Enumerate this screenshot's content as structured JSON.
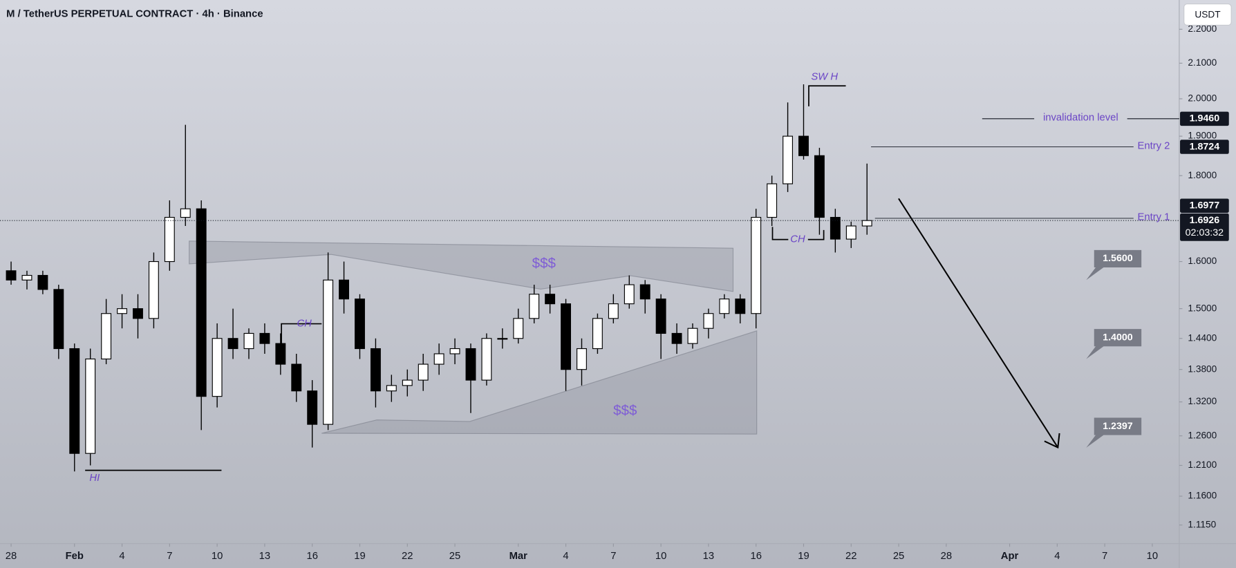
{
  "chart_data": {
    "type": "candlestick",
    "title": "M / TetherUS PERPETUAL CONTRACT · 4h · Binance",
    "currency": "USDT",
    "log_scale": true,
    "grid": false,
    "up_color": "#ffffff",
    "down_color": "#000000",
    "wick_color": "#000000",
    "annotation_color": "#6b45c6",
    "tag_color": "#131722",
    "target_color": "#787b86",
    "x": [
      0,
      1,
      2,
      3,
      4,
      5,
      6,
      7,
      8,
      9,
      10,
      11,
      12,
      13,
      14,
      15,
      16,
      17,
      18,
      19,
      20,
      21,
      22,
      23,
      24,
      25,
      26,
      27,
      28,
      29,
      30,
      31,
      32,
      33,
      34,
      35,
      36,
      37,
      38,
      39,
      40,
      41,
      42,
      43,
      44,
      45,
      46,
      47,
      48,
      49,
      50,
      51,
      52,
      53,
      54
    ],
    "open": [
      1.58,
      1.56,
      1.57,
      1.54,
      1.42,
      1.23,
      1.4,
      1.49,
      1.5,
      1.48,
      1.6,
      1.7,
      1.72,
      1.33,
      1.44,
      1.42,
      1.45,
      1.43,
      1.39,
      1.34,
      1.28,
      1.56,
      1.52,
      1.42,
      1.34,
      1.35,
      1.36,
      1.39,
      1.41,
      1.42,
      1.36,
      1.44,
      1.44,
      1.48,
      1.53,
      1.51,
      1.38,
      1.42,
      1.48,
      1.51,
      1.55,
      1.52,
      1.45,
      1.43,
      1.46,
      1.49,
      1.52,
      1.49,
      1.7,
      1.78,
      1.9,
      1.85,
      1.7,
      1.65,
      1.68
    ],
    "high": [
      1.6,
      1.58,
      1.58,
      1.55,
      1.43,
      1.42,
      1.52,
      1.53,
      1.53,
      1.62,
      1.74,
      1.93,
      1.74,
      1.47,
      1.5,
      1.46,
      1.47,
      1.45,
      1.41,
      1.36,
      1.62,
      1.6,
      1.53,
      1.44,
      1.37,
      1.38,
      1.41,
      1.43,
      1.44,
      1.43,
      1.45,
      1.46,
      1.5,
      1.55,
      1.55,
      1.52,
      1.44,
      1.49,
      1.53,
      1.57,
      1.56,
      1.53,
      1.47,
      1.47,
      1.5,
      1.53,
      1.53,
      1.72,
      1.8,
      1.99,
      2.04,
      1.87,
      1.72,
      1.69,
      1.83
    ],
    "low": [
      1.55,
      1.54,
      1.53,
      1.4,
      1.2,
      1.21,
      1.39,
      1.46,
      1.44,
      1.46,
      1.58,
      1.68,
      1.27,
      1.31,
      1.4,
      1.4,
      1.41,
      1.37,
      1.32,
      1.24,
      1.27,
      1.49,
      1.4,
      1.31,
      1.32,
      1.33,
      1.34,
      1.37,
      1.39,
      1.3,
      1.35,
      1.42,
      1.43,
      1.47,
      1.49,
      1.34,
      1.35,
      1.41,
      1.47,
      1.5,
      1.49,
      1.4,
      1.41,
      1.42,
      1.44,
      1.48,
      1.47,
      1.46,
      1.68,
      1.76,
      1.84,
      1.66,
      1.62,
      1.63,
      1.66
    ],
    "close": [
      1.56,
      1.57,
      1.54,
      1.42,
      1.23,
      1.4,
      1.49,
      1.5,
      1.48,
      1.6,
      1.7,
      1.72,
      1.33,
      1.44,
      1.42,
      1.45,
      1.43,
      1.39,
      1.34,
      1.28,
      1.56,
      1.52,
      1.42,
      1.34,
      1.35,
      1.36,
      1.39,
      1.41,
      1.42,
      1.36,
      1.44,
      1.44,
      1.48,
      1.53,
      1.51,
      1.38,
      1.42,
      1.48,
      1.51,
      1.55,
      1.52,
      1.45,
      1.43,
      1.46,
      1.49,
      1.52,
      1.49,
      1.7,
      1.78,
      1.9,
      1.85,
      1.7,
      1.65,
      1.68,
      1.6926
    ],
    "xlim": [
      -0.7,
      73.7
    ],
    "ylim": [
      1.087,
      2.29
    ],
    "xticks": [
      {
        "value": 0,
        "label": "28"
      },
      {
        "value": 4,
        "label": "Feb"
      },
      {
        "value": 7,
        "label": "4"
      },
      {
        "value": 10,
        "label": "7"
      },
      {
        "value": 13,
        "label": "10"
      },
      {
        "value": 16,
        "label": "13"
      },
      {
        "value": 19,
        "label": "16"
      },
      {
        "value": 22,
        "label": "19"
      },
      {
        "value": 25,
        "label": "22"
      },
      {
        "value": 28,
        "label": "25"
      },
      {
        "value": 32,
        "label": "Mar"
      },
      {
        "value": 35,
        "label": "4"
      },
      {
        "value": 38,
        "label": "7"
      },
      {
        "value": 41,
        "label": "10"
      },
      {
        "value": 44,
        "label": "13"
      },
      {
        "value": 47,
        "label": "16"
      },
      {
        "value": 50,
        "label": "19"
      },
      {
        "value": 53,
        "label": "22"
      },
      {
        "value": 56,
        "label": "25"
      },
      {
        "value": 59,
        "label": "28"
      },
      {
        "value": 63,
        "label": "Apr"
      },
      {
        "value": 66,
        "label": "4"
      },
      {
        "value": 69,
        "label": "7"
      },
      {
        "value": 72,
        "label": "10"
      }
    ],
    "yticks": [
      {
        "value": 2.2,
        "label": "2.2000"
      },
      {
        "value": 2.1,
        "label": "2.1000"
      },
      {
        "value": 2.0,
        "label": "2.0000"
      },
      {
        "value": 1.9,
        "label": "1.9000"
      },
      {
        "value": 1.8,
        "label": "1.8000"
      },
      {
        "value": 1.6,
        "label": "1.6000"
      },
      {
        "value": 1.5,
        "label": "1.5000"
      },
      {
        "value": 1.44,
        "label": "1.4400"
      },
      {
        "value": 1.38,
        "label": "1.3800"
      },
      {
        "value": 1.32,
        "label": "1.3200"
      },
      {
        "value": 1.26,
        "label": "1.2600"
      },
      {
        "value": 1.21,
        "label": "1.2100"
      },
      {
        "value": 1.16,
        "label": "1.1600"
      },
      {
        "value": 1.115,
        "label": "1.1150"
      }
    ],
    "levels": [
      {
        "label": "invalidation level",
        "value": 1.946,
        "value_label": "1.9460"
      },
      {
        "label": "Entry 2",
        "value": 1.8724,
        "value_label": "1.8724"
      },
      {
        "label": "Entry 1",
        "value": 1.6977,
        "value_label": "1.6977"
      }
    ],
    "last_price": {
      "value": 1.6926,
      "value_label": "1.6926",
      "countdown": "02:03:32"
    },
    "targets": [
      {
        "value": 1.56,
        "value_label": "1.5600"
      },
      {
        "value": 1.4,
        "value_label": "1.4000"
      },
      {
        "value": 1.2397,
        "value_label": "1.2397"
      }
    ],
    "annotations": [
      "$$$",
      "$$$",
      "CH",
      "CH",
      "HI",
      "SW H"
    ]
  }
}
